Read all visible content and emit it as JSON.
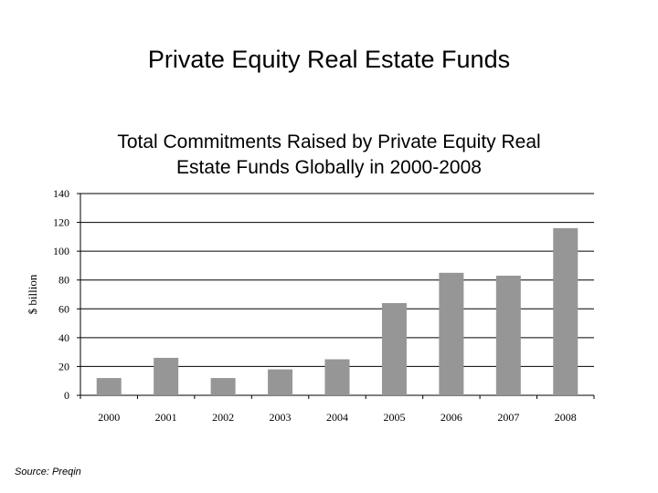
{
  "slide": {
    "title": "Private Equity Real Estate Funds",
    "source": "Source: Preqin"
  },
  "chart_data": {
    "type": "bar",
    "title_lines": [
      "Total Commitments Raised by Private Equity Real",
      "Estate Funds Globally in 2000-2008"
    ],
    "xlabel": "",
    "ylabel": "$ billion",
    "categories": [
      "2000",
      "2001",
      "2002",
      "2003",
      "2004",
      "2005",
      "2006",
      "2007",
      "2008"
    ],
    "values": [
      12,
      26,
      12,
      18,
      25,
      64,
      85,
      83,
      116
    ],
    "ylim": [
      0,
      140
    ],
    "yticks": [
      0,
      20,
      40,
      60,
      80,
      100,
      120,
      140
    ],
    "grid": true,
    "bar_color": "#969696",
    "grid_color": "#000000"
  }
}
